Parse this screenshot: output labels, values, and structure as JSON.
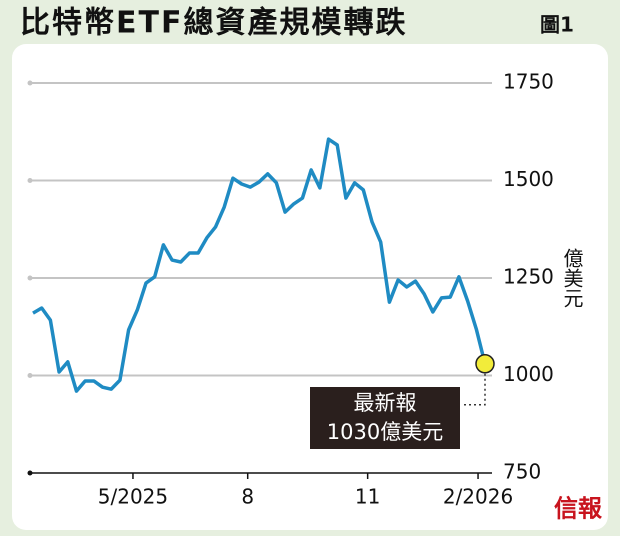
{
  "chart_data": {
    "type": "line",
    "title": "比特幣ETF總資產規模轉跌",
    "figure_label": "圖1",
    "y_label": "億美元",
    "annotation": [
      "最新報",
      "1030億美元"
    ],
    "logo": "信報",
    "x": [
      0,
      1,
      2,
      3,
      4,
      5,
      6,
      7,
      8,
      9,
      10,
      11,
      12,
      13,
      14,
      15,
      16,
      17,
      18,
      19,
      20,
      21,
      22,
      23,
      24,
      25,
      26,
      27,
      28,
      29,
      30,
      31,
      32,
      33,
      34,
      35,
      36,
      37,
      38,
      39,
      40,
      41,
      42,
      43,
      44,
      45,
      46,
      47,
      48,
      49,
      50,
      51,
      52
    ],
    "series": [
      {
        "name": "總資產",
        "color": "#1f8bc3",
        "values": [
          1160,
          1173,
          1142,
          1009,
          1035,
          960,
          986,
          986,
          970,
          965,
          988,
          1117,
          1168,
          1237,
          1253,
          1335,
          1296,
          1291,
          1314,
          1314,
          1353,
          1381,
          1432,
          1506,
          1491,
          1483,
          1496,
          1517,
          1494,
          1419,
          1440,
          1455,
          1527,
          1481,
          1606,
          1591,
          1455,
          1494,
          1476,
          1394,
          1342,
          1188,
          1245,
          1227,
          1242,
          1209,
          1163,
          1199,
          1201,
          1253,
          1191,
          1119,
          1030
        ]
      }
    ],
    "xlim": [
      0,
      52
    ],
    "xticks": [
      {
        "value": 11.5,
        "label": "5/2025"
      },
      {
        "value": 24.7,
        "label": "8"
      },
      {
        "value": 38.5,
        "label": "11"
      },
      {
        "value": 51.2,
        "label": "2/2026"
      }
    ],
    "ylim": [
      750,
      1750
    ],
    "yticks": [
      750,
      1000,
      1250,
      1500,
      1750
    ],
    "grid": true
  }
}
